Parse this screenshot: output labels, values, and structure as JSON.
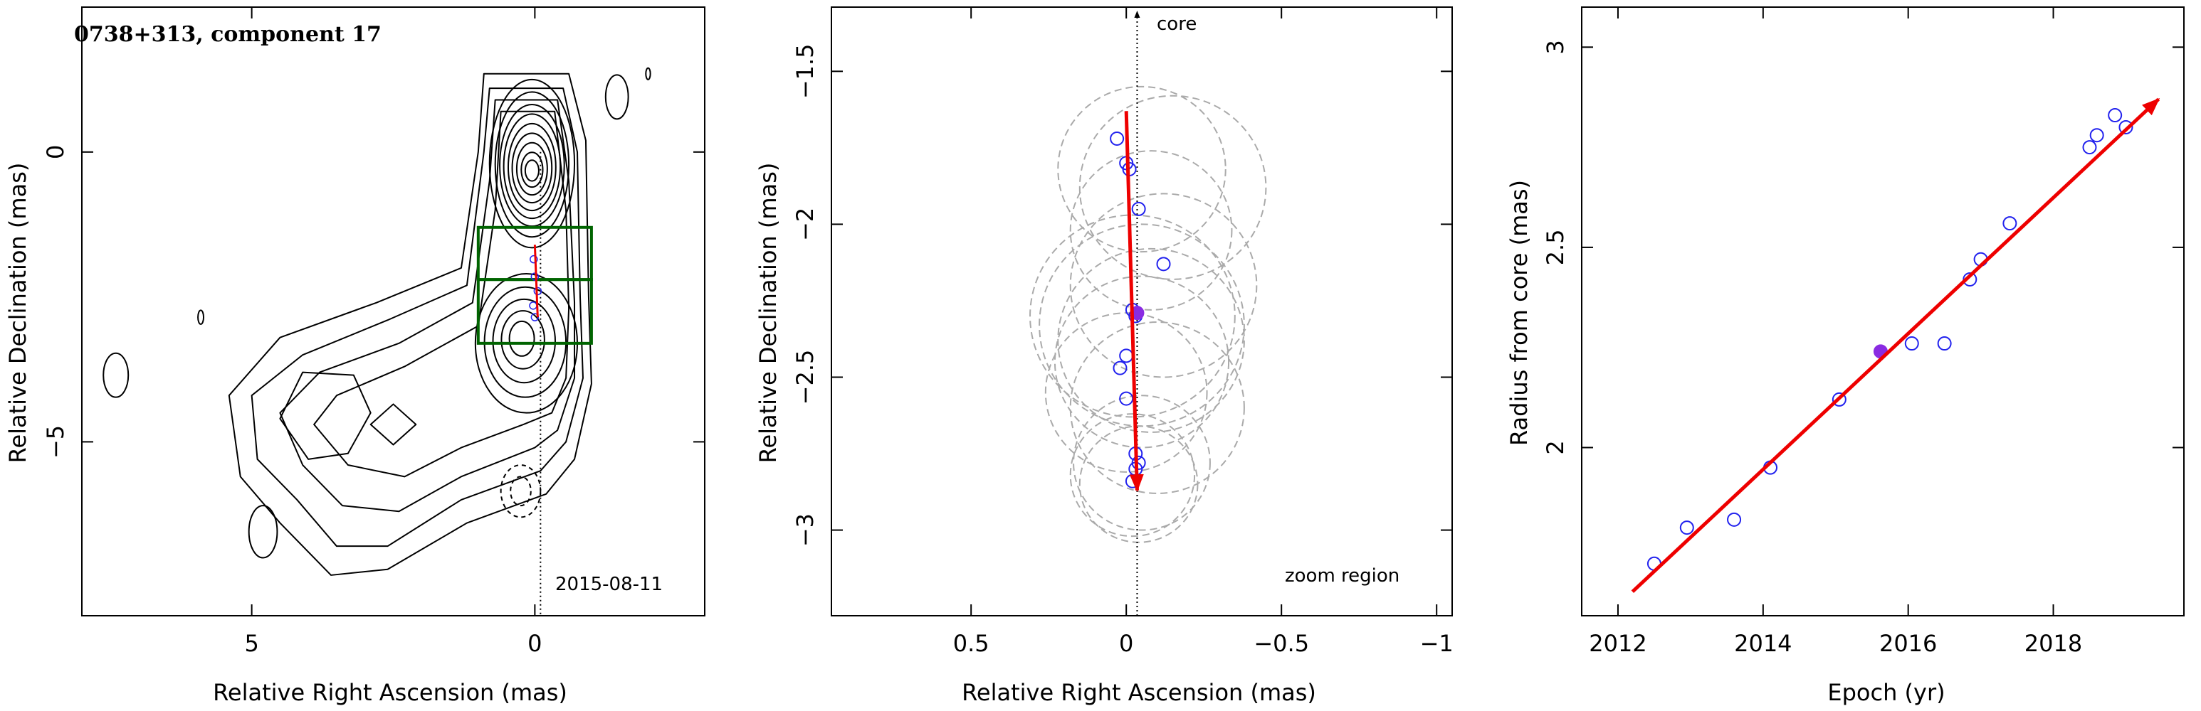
{
  "figure": {
    "background": "#ffffff",
    "colors": {
      "contour": "#000000",
      "box": "#006400",
      "arrow": "#ee0000",
      "points": "#2222ee",
      "highlight": "#8a2be2",
      "circles": "#aaaaaa"
    }
  },
  "chart_data": [
    {
      "type": "contour",
      "title": "0738+313, component 17",
      "xlabel": "Relative Right Ascension (mas)",
      "ylabel": "Relative Declination (mas)",
      "xlim": [
        8,
        -3
      ],
      "ylim": [
        -8,
        2.5
      ],
      "x_ticks": [
        5,
        0
      ],
      "y_ticks": [
        0,
        -5
      ],
      "annotation": "2015-08-11",
      "core_line_x": -0.1,
      "boxes": [
        {
          "x": [
            1,
            -1
          ],
          "y": [
            -2.2,
            -1.3
          ]
        },
        {
          "x": [
            1,
            -1
          ],
          "y": [
            -3.3,
            -2.2
          ]
        }
      ],
      "feature_track": {
        "from": [
          0.0,
          -1.6
        ],
        "to": [
          -0.05,
          -2.85
        ]
      },
      "components": [
        {
          "x": 0.02,
          "y": -1.85
        },
        {
          "x": 0.0,
          "y": -2.15
        },
        {
          "x": -0.05,
          "y": -2.4
        },
        {
          "x": 0.03,
          "y": -2.65
        },
        {
          "x": 0.0,
          "y": -2.85
        }
      ]
    },
    {
      "type": "scatter",
      "xlabel": "Relative Right Ascension (mas)",
      "ylabel": "Relative Declination (mas)",
      "xlim": [
        0.95,
        -1.05
      ],
      "ylim": [
        -3.28,
        -1.29
      ],
      "x_ticks": [
        0.5,
        0,
        -0.5,
        -1
      ],
      "y_ticks": [
        -1.5,
        -2,
        -2.5,
        -3
      ],
      "core_label": "core",
      "zoom_label": "zoom region",
      "core_line_x": -0.035,
      "x": [
        0.03,
        0.0,
        -0.01,
        -0.04,
        -0.12,
        -0.02,
        -0.03,
        0.0,
        0.02,
        0.0,
        -0.03,
        -0.04,
        -0.03,
        -0.02
      ],
      "y": [
        -1.72,
        -1.8,
        -1.82,
        -1.95,
        -2.13,
        -2.28,
        -2.3,
        -2.43,
        -2.47,
        -2.57,
        -2.75,
        -2.78,
        -2.8,
        -2.84
      ],
      "highlight": {
        "x": -0.035,
        "y": -2.29
      },
      "track": {
        "from": [
          0.0,
          -1.63
        ],
        "to": [
          -0.035,
          -2.87
        ]
      },
      "circles": [
        {
          "x": -0.05,
          "y": -1.82,
          "r": 0.27
        },
        {
          "x": -0.15,
          "y": -1.88,
          "r": 0.3
        },
        {
          "x": -0.08,
          "y": -2.02,
          "r": 0.26
        },
        {
          "x": -0.12,
          "y": -2.2,
          "r": 0.3
        },
        {
          "x": -0.02,
          "y": -2.3,
          "r": 0.33
        },
        {
          "x": -0.05,
          "y": -2.33,
          "r": 0.33
        },
        {
          "x": -0.08,
          "y": -2.38,
          "r": 0.3
        },
        {
          "x": -0.05,
          "y": -2.45,
          "r": 0.28
        },
        {
          "x": 0.0,
          "y": -2.55,
          "r": 0.26
        },
        {
          "x": -0.1,
          "y": -2.6,
          "r": 0.28
        },
        {
          "x": -0.05,
          "y": -2.78,
          "r": 0.22
        },
        {
          "x": -0.02,
          "y": -2.82,
          "r": 0.2
        },
        {
          "x": -0.04,
          "y": -2.85,
          "r": 0.19
        }
      ]
    },
    {
      "type": "scatter",
      "xlabel": "Epoch (yr)",
      "ylabel": "Radius from core (mas)",
      "xlim": [
        2011.5,
        2019.8
      ],
      "ylim": [
        1.58,
        3.1
      ],
      "x_ticks": [
        2012,
        2014,
        2016,
        2018
      ],
      "y_ticks": [
        2,
        2.5,
        3
      ],
      "x": [
        2012.5,
        2012.95,
        2013.6,
        2014.1,
        2015.05,
        2016.05,
        2016.5,
        2016.85,
        2017.0,
        2017.4,
        2018.5,
        2018.6,
        2018.85,
        2019.0
      ],
      "y": [
        1.71,
        1.8,
        1.82,
        1.95,
        2.12,
        2.26,
        2.26,
        2.42,
        2.47,
        2.56,
        2.75,
        2.78,
        2.83,
        2.8
      ],
      "highlight": {
        "x": 2015.62,
        "y": 2.24
      },
      "fit": {
        "from": [
          2012.2,
          1.64
        ],
        "to": [
          2019.45,
          2.87
        ]
      }
    }
  ]
}
